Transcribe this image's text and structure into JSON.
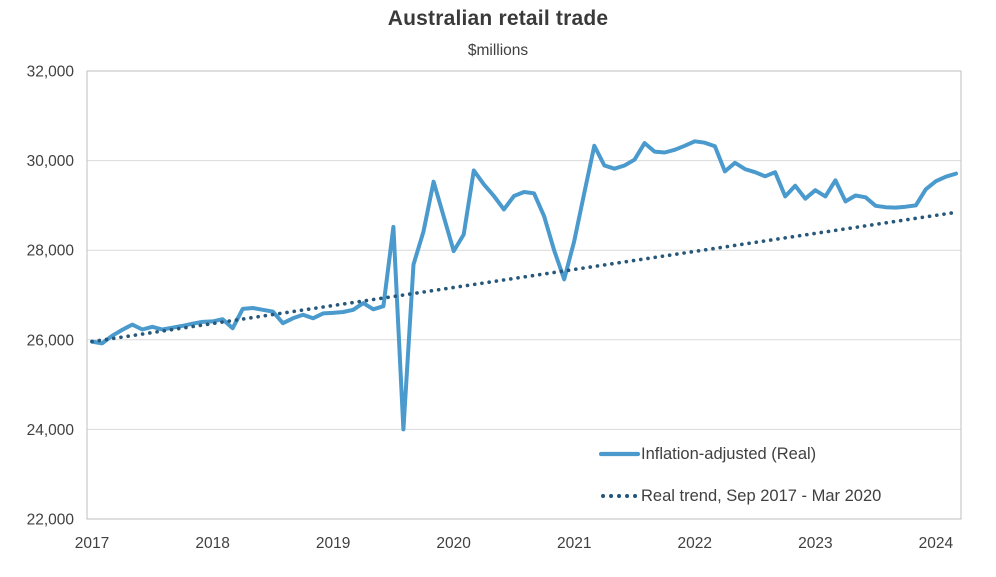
{
  "chart_data": {
    "type": "line",
    "title": "Australian retail trade",
    "subtitle": "$millions",
    "xlabel": "",
    "ylabel": "",
    "ylim": [
      22000,
      32000
    ],
    "grid": "horizontal",
    "legend_position": "inside bottom-right",
    "colors": {
      "real_series": "#4a9acd",
      "trend_series": "#27587a",
      "gridline": "#d9d9d9",
      "border": "#bfbfbf",
      "text": "#404040"
    },
    "y_axis": {
      "ticks": [
        {
          "label": "22,000",
          "value": 22000
        },
        {
          "label": "24,000",
          "value": 24000
        },
        {
          "label": "26,000",
          "value": 26000
        },
        {
          "label": "28,000",
          "value": 28000
        },
        {
          "label": "30,000",
          "value": 30000
        },
        {
          "label": "32,000",
          "value": 32000
        }
      ]
    },
    "x_axis": {
      "ticks": [
        {
          "label": "2017",
          "month_index": 0
        },
        {
          "label": "2018",
          "month_index": 12
        },
        {
          "label": "2019",
          "month_index": 24
        },
        {
          "label": "2020",
          "month_index": 36
        },
        {
          "label": "2021",
          "month_index": 48
        },
        {
          "label": "2022",
          "month_index": 60
        },
        {
          "label": "2023",
          "month_index": 72
        },
        {
          "label": "2024",
          "month_index": 84
        }
      ]
    },
    "months": [
      "2017-09",
      "2017-10",
      "2017-11",
      "2017-12",
      "2018-01",
      "2018-02",
      "2018-03",
      "2018-04",
      "2018-05",
      "2018-06",
      "2018-07",
      "2018-08",
      "2018-09",
      "2018-10",
      "2018-11",
      "2018-12",
      "2019-01",
      "2019-02",
      "2019-03",
      "2019-04",
      "2019-05",
      "2019-06",
      "2019-07",
      "2019-08",
      "2019-09",
      "2019-10",
      "2019-11",
      "2019-12",
      "2020-01",
      "2020-02",
      "2020-03",
      "2020-04",
      "2020-05",
      "2020-06",
      "2020-07",
      "2020-08",
      "2020-09",
      "2020-10",
      "2020-11",
      "2020-12",
      "2021-01",
      "2021-02",
      "2021-03",
      "2021-04",
      "2021-05",
      "2021-06",
      "2021-07",
      "2021-08",
      "2021-09",
      "2021-10",
      "2021-11",
      "2021-12",
      "2022-01",
      "2022-02",
      "2022-03",
      "2022-04",
      "2022-05",
      "2022-06",
      "2022-07",
      "2022-08",
      "2022-09",
      "2022-10",
      "2022-11",
      "2022-12",
      "2023-01",
      "2023-02",
      "2023-03",
      "2023-04",
      "2023-05",
      "2023-06",
      "2023-07",
      "2023-08",
      "2023-09",
      "2023-10",
      "2023-11",
      "2023-12",
      "2024-01",
      "2024-02",
      "2024-03",
      "2024-04",
      "2024-05",
      "2024-06",
      "2024-07",
      "2024-08",
      "2024-09",
      "2024-10",
      "2024-11"
    ],
    "series": [
      {
        "name": "Inflation-adjusted (Real)",
        "style": "solid",
        "color": "#4a9acd",
        "values": [
          25960,
          25920,
          26090,
          26220,
          26340,
          26230,
          26290,
          26230,
          26270,
          26310,
          26360,
          26400,
          26410,
          26460,
          26260,
          26690,
          26710,
          26670,
          26630,
          26370,
          26480,
          26560,
          26480,
          26590,
          26600,
          26620,
          26670,
          26820,
          26680,
          26750,
          28520,
          24000,
          27680,
          28420,
          29530,
          28760,
          27980,
          28350,
          29780,
          29470,
          29210,
          28910,
          29210,
          29300,
          29270,
          28760,
          28000,
          27350,
          28200,
          29280,
          30330,
          29890,
          29820,
          29890,
          30020,
          30390,
          30200,
          30180,
          30240,
          30330,
          30430,
          30400,
          30320,
          29760,
          29950,
          29810,
          29740,
          29650,
          29740,
          29200,
          29440,
          29150,
          29340,
          29200,
          29560,
          29090,
          29220,
          29180,
          28990,
          28960,
          28950,
          28970,
          29000,
          29360,
          29540,
          29640,
          29710
        ]
      },
      {
        "name": "Real trend, Sep 2017 - Mar 2020",
        "style": "dotted",
        "color": "#27587a",
        "trend": {
          "start_month": "2017-09",
          "start_value": 25960,
          "end_month": "2024-11",
          "end_value": 28845
        }
      }
    ]
  }
}
